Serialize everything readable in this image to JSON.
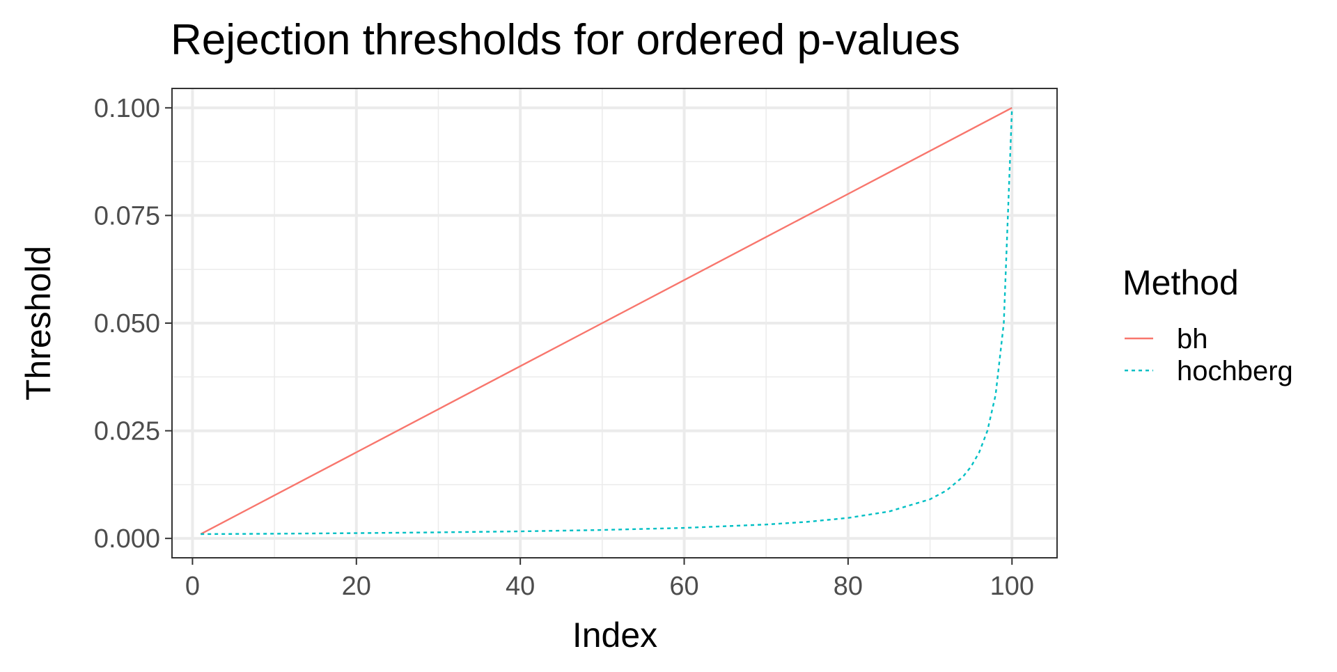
{
  "chart_data": {
    "type": "line",
    "title": "Rejection thresholds for ordered p-values",
    "xlabel": "Index",
    "ylabel": "Threshold",
    "xlim": [
      -2.5,
      105.5
    ],
    "ylim": [
      -0.0045,
      0.1045
    ],
    "x_ticks": [
      0,
      20,
      40,
      60,
      80,
      100
    ],
    "x_tick_labels": [
      "0",
      "20",
      "40",
      "60",
      "80",
      "100"
    ],
    "y_ticks": [
      0,
      0.025,
      0.05,
      0.075,
      0.1
    ],
    "y_tick_labels": [
      "0.000",
      "0.025",
      "0.050",
      "0.075",
      "0.100"
    ],
    "grid": true,
    "legend": {
      "title": "Method",
      "position": "right"
    },
    "series": [
      {
        "name": "bh",
        "color": "#F8766D",
        "line_style": "solid",
        "x": [
          1,
          10,
          20,
          30,
          40,
          50,
          60,
          70,
          80,
          90,
          100
        ],
        "y": [
          0.001,
          0.01,
          0.02,
          0.03,
          0.04,
          0.05,
          0.06,
          0.07,
          0.08,
          0.09,
          0.1
        ]
      },
      {
        "name": "hochberg",
        "color": "#00BFC4",
        "line_style": "dashed",
        "x": [
          1,
          10,
          20,
          30,
          40,
          50,
          60,
          70,
          75,
          80,
          85,
          90,
          92,
          94,
          95,
          96,
          97,
          98,
          99,
          100
        ],
        "y": [
          0.001,
          0.00109,
          0.00123,
          0.00141,
          0.00164,
          0.00196,
          0.00244,
          0.00323,
          0.00385,
          0.00476,
          0.00625,
          0.00909,
          0.01111,
          0.01429,
          0.01667,
          0.02,
          0.025,
          0.03333,
          0.05,
          0.1
        ]
      }
    ]
  }
}
